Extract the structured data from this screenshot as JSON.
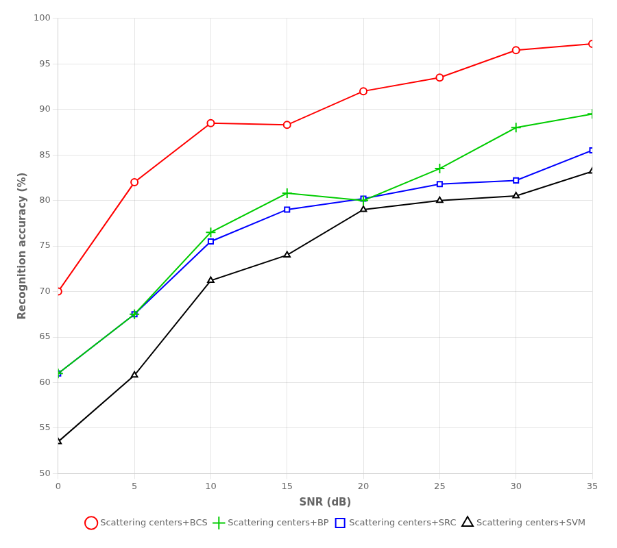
{
  "chart_data": {
    "type": "line",
    "x_label": "SNR (dB)",
    "y_label": "Recognition accuracy (%)",
    "x": [
      0,
      5,
      10,
      15,
      20,
      25,
      30,
      35
    ],
    "series": [
      {
        "name": "Scattering centers+BCS",
        "color": "#ff0000",
        "marker": "circle",
        "values": [
          70.0,
          82.0,
          88.5,
          88.3,
          92.0,
          93.5,
          96.5,
          97.2
        ]
      },
      {
        "name": "Scattering centers+BP",
        "color": "#00cc00",
        "marker": "plus",
        "values": [
          61.0,
          67.5,
          76.5,
          80.8,
          80.0,
          83.5,
          88.0,
          89.5
        ]
      },
      {
        "name": "Scattering centers+SRC",
        "color": "#0000ff",
        "marker": "square",
        "values": [
          61.0,
          67.5,
          75.5,
          79.0,
          80.2,
          81.8,
          82.2,
          85.5
        ]
      },
      {
        "name": "Scattering centers+SVM",
        "color": "#000000",
        "marker": "triangle",
        "values": [
          53.5,
          60.8,
          71.2,
          74.0,
          79.0,
          80.0,
          80.5,
          83.2
        ]
      }
    ],
    "xlim": [
      0,
      35
    ],
    "ylim": [
      50,
      100
    ],
    "xticks": [
      0,
      5,
      10,
      15,
      20,
      25,
      30,
      35
    ],
    "yticks": [
      50,
      55,
      60,
      65,
      70,
      75,
      80,
      85,
      90,
      95,
      100
    ],
    "grid": true,
    "legend": "lower right"
  }
}
